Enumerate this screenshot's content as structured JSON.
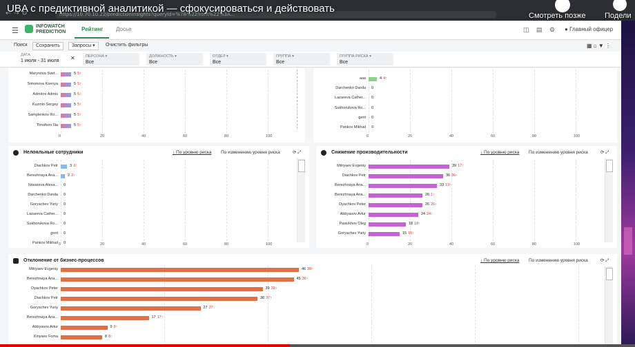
{
  "video": {
    "title": "UBA с предиктивной аналитикой — сфокусироваться и действовать",
    "watch_later": "Смотреть позже",
    "share": "Подели"
  },
  "browser": {
    "url": "https://10.70.10.22/predictionInsights?queryId=%7B%22from%22%3A..."
  },
  "app": {
    "logo_line1": "INFOWATCH",
    "logo_line2": "PREDICTION",
    "tabs": [
      "Рейтинг",
      "Досье"
    ],
    "user": "Главный офицер"
  },
  "filters": {
    "search": "Поиск",
    "save": "Сохранить",
    "queries": "Запросы ▾",
    "clear": "Очистить фильтры",
    "date_label": "ДАТА",
    "date_value": "1 июля - 31 июля",
    "cols": [
      {
        "label": "ПЕРСОНА ▾",
        "value": "Все"
      },
      {
        "label": "ДОЛЖНОСТЬ ▾",
        "value": "Все"
      },
      {
        "label": "ОТДЕЛ ▾",
        "value": "Все"
      },
      {
        "label": "ГРУППА ▾",
        "value": "Все"
      },
      {
        "label": "ГРУППА РИСКА ▾",
        "value": "Все"
      }
    ]
  },
  "axis_ticks": [
    "0",
    "20",
    "40",
    "60",
    "80",
    "100"
  ],
  "sort_labels": {
    "by_level": "↓ По уровню риска",
    "by_change": "По изменению уровня риска"
  },
  "panels": {
    "top_left": {
      "rows": [
        {
          "name": "Marynova Svet...",
          "value": "5",
          "delta": "5↑"
        },
        {
          "name": "Simonova Ksenya",
          "value": "5",
          "delta": "5↑"
        },
        {
          "name": "Admirov Admis",
          "value": "5",
          "delta": "5↑"
        },
        {
          "name": "Kuzmin Sergey",
          "value": "5",
          "delta": "5↑"
        },
        {
          "name": "Samplenkov Ro...",
          "value": "5",
          "delta": "5↑"
        },
        {
          "name": "Timofeev Ilia",
          "value": "5",
          "delta": "5↑"
        }
      ]
    },
    "top_right": {
      "rows": [
        {
          "name": "aaa",
          "value": "4",
          "delta": "4↑"
        },
        {
          "name": "Darchenko Danila",
          "value": "0",
          "delta": ""
        },
        {
          "name": "Lazareva Cather...",
          "value": "0",
          "delta": ""
        },
        {
          "name": "Sukhorukova Ro...",
          "value": "0",
          "delta": ""
        },
        {
          "name": "gerit",
          "value": "0",
          "delta": ""
        },
        {
          "name": "Pankov Mikhail",
          "value": "0",
          "delta": ""
        }
      ]
    },
    "disloyal": {
      "title": "Нелояльные сотрудники",
      "rows": [
        {
          "name": "Diachkov Petr",
          "value": "3",
          "delta": "3↑"
        },
        {
          "name": "Berezhnaya Ana...",
          "value": "2",
          "delta": "2↑"
        },
        {
          "name": "Nosareva Alexa...",
          "value": "0",
          "delta": ""
        },
        {
          "name": "Darchenko Danila",
          "value": "0",
          "delta": ""
        },
        {
          "name": "Goryachev Yuriy",
          "value": "0",
          "delta": ""
        },
        {
          "name": "Lazareva Cather...",
          "value": "0",
          "delta": ""
        },
        {
          "name": "Sukhorukova Ro...",
          "value": "0",
          "delta": ""
        },
        {
          "name": "gerit",
          "value": "0",
          "delta": ""
        },
        {
          "name": "Pankov Mikhail",
          "value": "0",
          "delta": ""
        }
      ]
    },
    "productivity": {
      "title": "Снижение производительности",
      "rows": [
        {
          "name": "Mitryaev Evgeniy",
          "value": "39",
          "delta": "17↑"
        },
        {
          "name": "Diachkov Petr",
          "value": "36",
          "delta": "36↑"
        },
        {
          "name": "Berezhnaya Ana...",
          "value": "33",
          "delta": "19↑"
        },
        {
          "name": "Berezhnaya Ana...",
          "value": "26",
          "delta": "1↑"
        },
        {
          "name": "Dyachkov Peter",
          "value": "26",
          "delta": "26↑"
        },
        {
          "name": "Abbyasov Artur",
          "value": "24",
          "delta": "24↑"
        },
        {
          "name": "Pasiukhov Oleg",
          "value": "18",
          "delta": "18↑"
        },
        {
          "name": "Goryachev Yuriy",
          "value": "15",
          "delta": "15↑"
        }
      ]
    },
    "business": {
      "title": "Отклонение от бизнес-процессов",
      "rows": [
        {
          "name": "Mitryaev Evgeniy",
          "value": "46",
          "delta": "38↑"
        },
        {
          "name": "Berezhnaya Ana...",
          "value": "45",
          "delta": "36↑"
        },
        {
          "name": "Dyachkov Peter",
          "value": "39",
          "delta": "39↑"
        },
        {
          "name": "Diachkov Petr",
          "value": "38",
          "delta": "37↑"
        },
        {
          "name": "Goryachev Yuriy",
          "value": "27",
          "delta": "27↑"
        },
        {
          "name": "Berezhnaya Ana...",
          "value": "17",
          "delta": "17↑"
        },
        {
          "name": "Abbyasov Artur",
          "value": "9",
          "delta": "9↑"
        },
        {
          "name": "Kinyaev Foma",
          "value": "8",
          "delta": "8↑"
        }
      ]
    }
  },
  "colors": {
    "green": "#8fd08a",
    "purple": "#c563d6",
    "orange": "#e07048",
    "blue": "#8ab8e8",
    "accent": "#2f8a4a"
  }
}
